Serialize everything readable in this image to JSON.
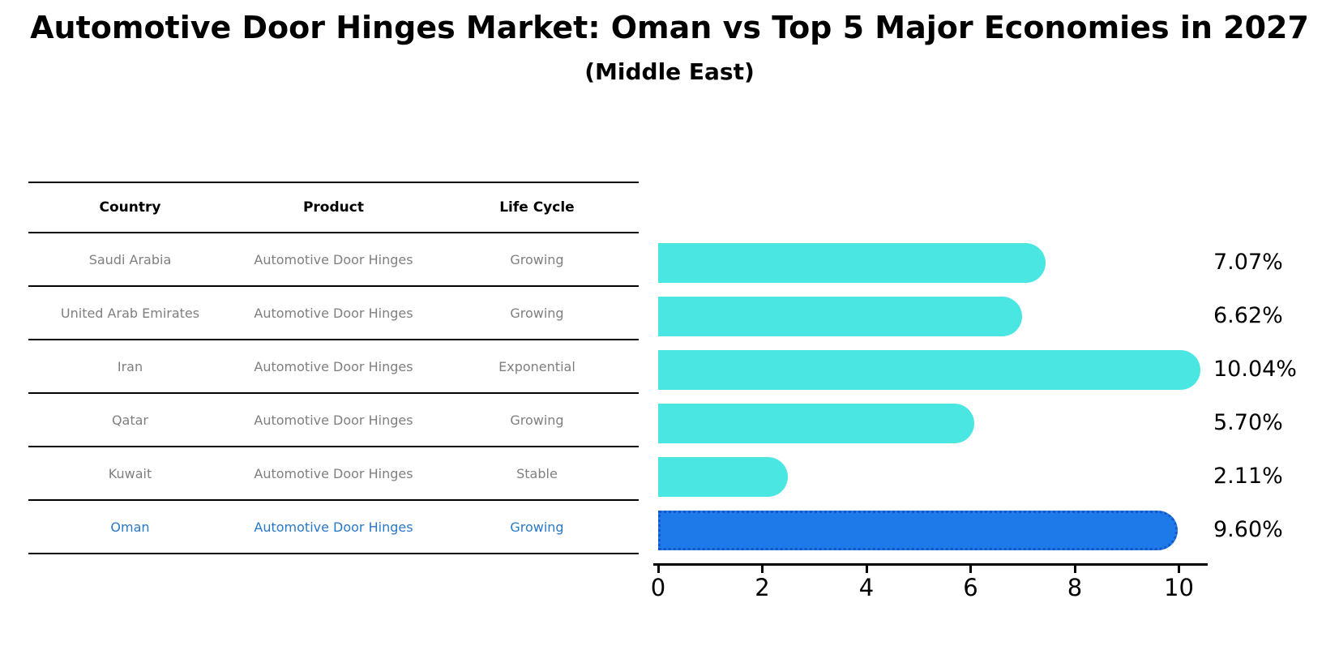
{
  "page": {
    "title": "Automotive Door Hinges Market: Oman vs Top 5 Major Economies in 2027",
    "subtitle": "(Middle East)"
  },
  "table": {
    "headers": [
      "Country",
      "Product",
      "Life Cycle"
    ],
    "rows": [
      {
        "country": "Saudi Arabia",
        "product": "Automotive Door Hinges",
        "life_cycle": "Growing",
        "highlight": false
      },
      {
        "country": "United Arab Emirates",
        "product": "Automotive Door Hinges",
        "life_cycle": "Growing",
        "highlight": false
      },
      {
        "country": "Iran",
        "product": "Automotive Door Hinges",
        "life_cycle": "Exponential",
        "highlight": false
      },
      {
        "country": "Qatar",
        "product": "Automotive Door Hinges",
        "life_cycle": "Growing",
        "highlight": false
      },
      {
        "country": "Kuwait",
        "product": "Automotive Door Hinges",
        "life_cycle": "Stable",
        "highlight": false
      },
      {
        "country": "Oman",
        "product": "Automotive Door Hinges",
        "life_cycle": "Growing",
        "highlight": true
      }
    ]
  },
  "chart_data": {
    "type": "bar",
    "orientation": "horizontal",
    "title": "Automotive Door Hinges Market: Oman vs Top 5 Major Economies in 2027 (Middle East)",
    "categories": [
      "Saudi Arabia",
      "United Arab Emirates",
      "Iran",
      "Qatar",
      "Kuwait",
      "Oman"
    ],
    "values": [
      7.07,
      6.62,
      10.04,
      5.7,
      2.11,
      9.6
    ],
    "value_labels": [
      "7.07%",
      "6.62%",
      "10.04%",
      "5.70%",
      "2.11%",
      "9.60%"
    ],
    "x_ticks": [
      0,
      2,
      4,
      6,
      8,
      10
    ],
    "xlim": [
      0,
      10.6
    ],
    "grid": false,
    "legend": false,
    "highlight_index": 5,
    "colors": {
      "default_bar": "#4AE6E2",
      "highlight_bar": "#1E7AE8",
      "highlight_border": "#1458C8"
    }
  },
  "colors": {
    "background": "#FFFFFF",
    "text": "#000000",
    "muted_text": "#7F7F7F",
    "highlight_text": "#2878C8",
    "rule": "#000000"
  }
}
